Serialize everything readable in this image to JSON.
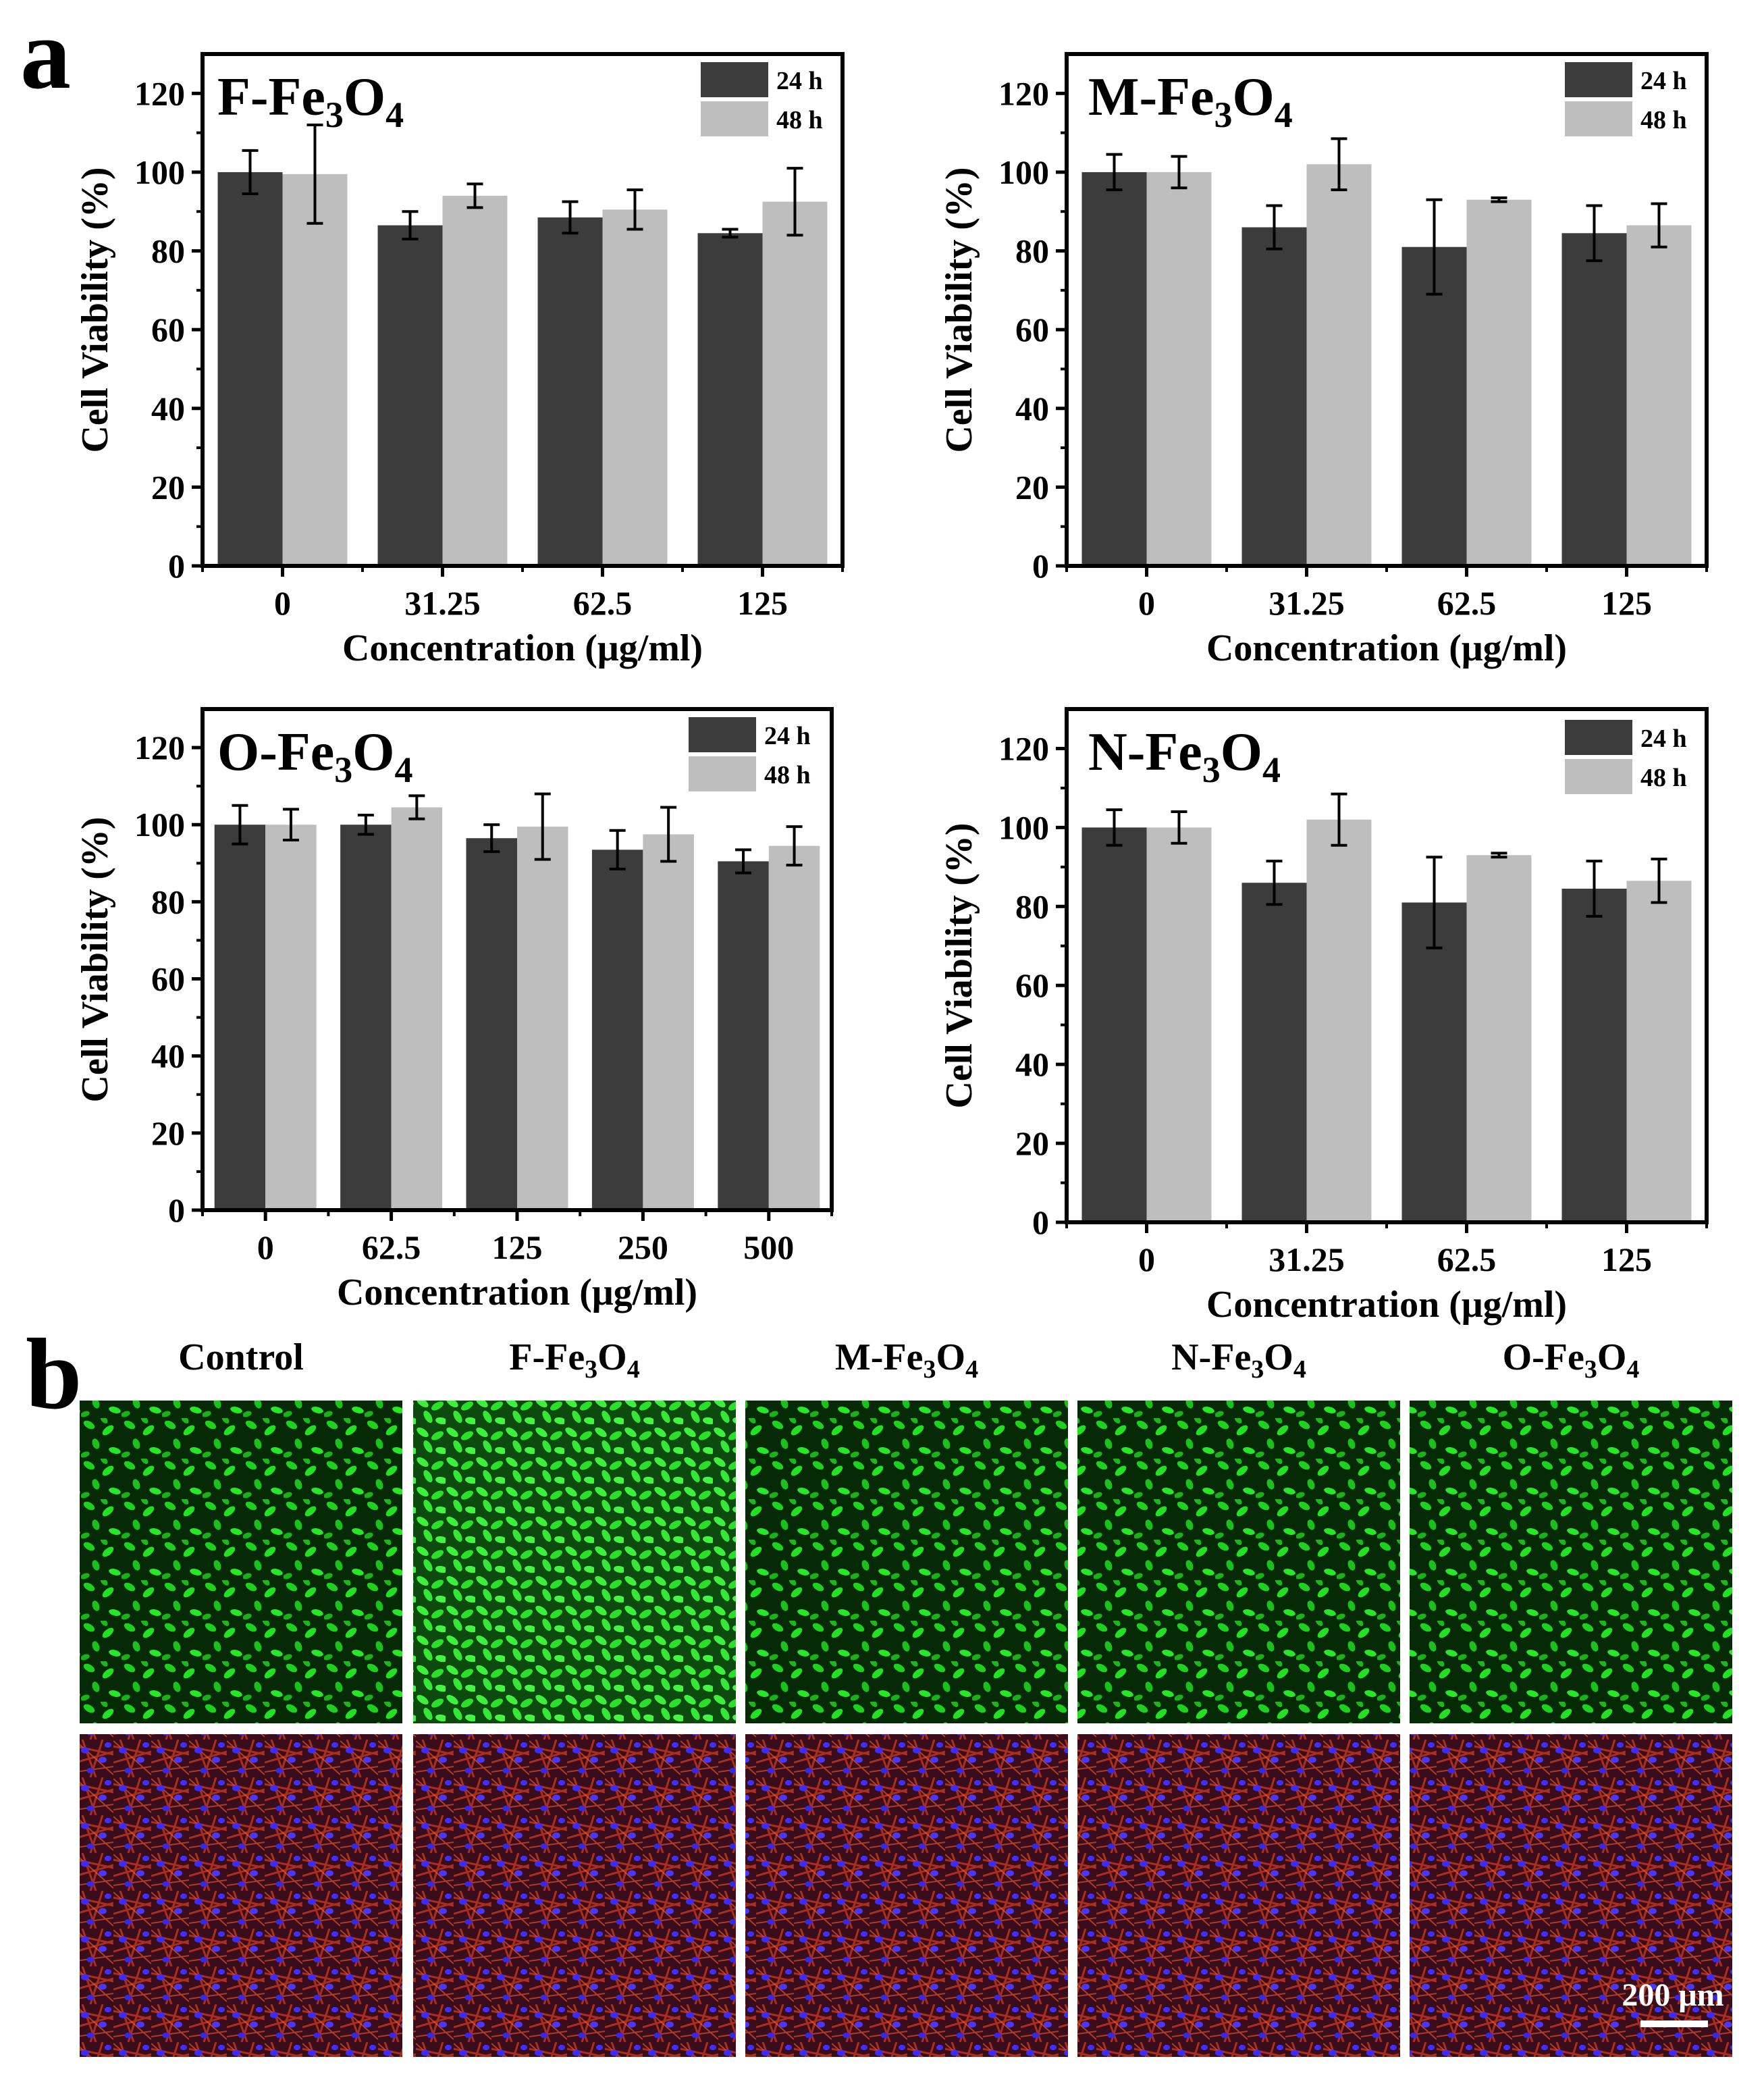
{
  "figure": {
    "panel_a_label": "a",
    "panel_b_label": "b"
  },
  "colors": {
    "bar_24h": "#3c3c3c",
    "bar_48h": "#bebebe",
    "live_stain": "#1fd11f",
    "cytoskeleton_stain": "#e0401c",
    "nucleus_stain": "#3a2cff"
  },
  "chart_data": [
    {
      "type": "bar",
      "title_main": "F-Fe",
      "title_sub1": "3",
      "title_mid": "O",
      "title_sub2": "4",
      "xlabel": "Concentration (μg/ml)",
      "ylabel": "Cell Viability (%)",
      "ylim": [
        0,
        130
      ],
      "yticks": [
        "0",
        "20",
        "40",
        "60",
        "80",
        "100",
        "120"
      ],
      "categories": [
        "0",
        "31.25",
        "62.5",
        "125"
      ],
      "series": [
        {
          "name": "24 h",
          "values": [
            100,
            86.5,
            88.5,
            84.5
          ],
          "errors": [
            5.5,
            3.5,
            4,
            1
          ]
        },
        {
          "name": "48 h",
          "values": [
            99.5,
            94,
            90.5,
            92.5
          ],
          "errors": [
            12.5,
            3,
            5,
            8.5
          ]
        }
      ],
      "legend": "top-right"
    },
    {
      "type": "bar",
      "title_main": "M-Fe",
      "title_sub1": "3",
      "title_mid": "O",
      "title_sub2": "4",
      "xlabel": "Concentration (μg/ml)",
      "ylabel": "Cell Viability (%)",
      "ylim": [
        0,
        130
      ],
      "yticks": [
        "0",
        "20",
        "40",
        "60",
        "80",
        "100",
        "120"
      ],
      "categories": [
        "0",
        "31.25",
        "62.5",
        "125"
      ],
      "series": [
        {
          "name": "24 h",
          "values": [
            100,
            86,
            81,
            84.5
          ],
          "errors": [
            4.5,
            5.5,
            12,
            7
          ]
        },
        {
          "name": "48 h",
          "values": [
            100,
            102,
            93,
            86.5
          ],
          "errors": [
            4,
            6.5,
            0.5,
            5.5
          ]
        }
      ],
      "legend": "top-right"
    },
    {
      "type": "bar",
      "title_main": "O-Fe",
      "title_sub1": "3",
      "title_mid": "O",
      "title_sub2": "4",
      "xlabel": "Concentration (μg/ml)",
      "ylabel": "Cell Viability (%)",
      "ylim": [
        0,
        130
      ],
      "yticks": [
        "0",
        "20",
        "40",
        "60",
        "80",
        "100",
        "120"
      ],
      "categories": [
        "0",
        "62.5",
        "125",
        "250",
        "500"
      ],
      "series": [
        {
          "name": "24 h",
          "values": [
            100,
            100,
            96.5,
            93.5,
            90.5
          ],
          "errors": [
            5,
            2.5,
            3.5,
            5,
            3
          ]
        },
        {
          "name": "48 h",
          "values": [
            100,
            104.5,
            99.5,
            97.5,
            94.5
          ],
          "errors": [
            4,
            3,
            8.5,
            7,
            5
          ]
        }
      ],
      "legend": "top-right"
    },
    {
      "type": "bar",
      "title_main": "N-Fe",
      "title_sub1": "3",
      "title_mid": "O",
      "title_sub2": "4",
      "xlabel": "Concentration (μg/ml)",
      "ylabel": "Cell Viability (%)",
      "ylim": [
        0,
        130
      ],
      "yticks": [
        "0",
        "20",
        "40",
        "60",
        "80",
        "100",
        "120"
      ],
      "categories": [
        "0",
        "31.25",
        "62.5",
        "125"
      ],
      "series": [
        {
          "name": "24 h",
          "values": [
            100,
            86,
            81,
            84.5
          ],
          "errors": [
            4.5,
            5.5,
            11.5,
            7
          ]
        },
        {
          "name": "48 h",
          "values": [
            100,
            102,
            93,
            86.5
          ],
          "errors": [
            4,
            6.5,
            0.5,
            5.5
          ]
        }
      ],
      "legend": "top-right"
    }
  ],
  "micrographs": {
    "columns": [
      {
        "main": "Control",
        "sub1": "",
        "mid": "",
        "sub2": ""
      },
      {
        "main": "F-Fe",
        "sub1": "3",
        "mid": "O",
        "sub2": "4"
      },
      {
        "main": "M-Fe",
        "sub1": "3",
        "mid": "O",
        "sub2": "4"
      },
      {
        "main": "N-Fe",
        "sub1": "3",
        "mid": "O",
        "sub2": "4"
      },
      {
        "main": "O-Fe",
        "sub1": "3",
        "mid": "O",
        "sub2": "4"
      }
    ],
    "scale_bar": "200 μm"
  }
}
